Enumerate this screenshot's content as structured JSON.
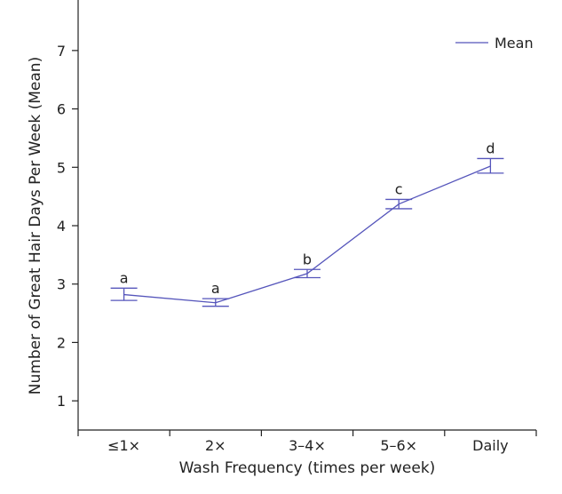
{
  "colors": {
    "series": "#5555bb",
    "axis": "#222222",
    "background": "#ffffff"
  },
  "chart_data": {
    "type": "line",
    "title": "",
    "xlabel": "Wash Frequency (times per week)",
    "ylabel": "Number of Great Hair Days Per Week (Mean)",
    "ylim": [
      0.5,
      7.5
    ],
    "yticks": [
      1,
      2,
      3,
      4,
      5,
      6,
      7
    ],
    "categories": [
      "≤1×",
      "2×",
      "3–4×",
      "5–6×",
      "Daily"
    ],
    "series": [
      {
        "name": "Mean",
        "values": [
          2.82,
          2.68,
          3.18,
          4.37,
          5.02
        ],
        "error_low": [
          2.72,
          2.62,
          3.11,
          4.29,
          4.9
        ],
        "error_high": [
          2.93,
          2.75,
          3.25,
          4.45,
          5.15
        ],
        "labels": [
          "a",
          "a",
          "b",
          "c",
          "d"
        ]
      }
    ],
    "grid": false,
    "legend": "top-right"
  }
}
